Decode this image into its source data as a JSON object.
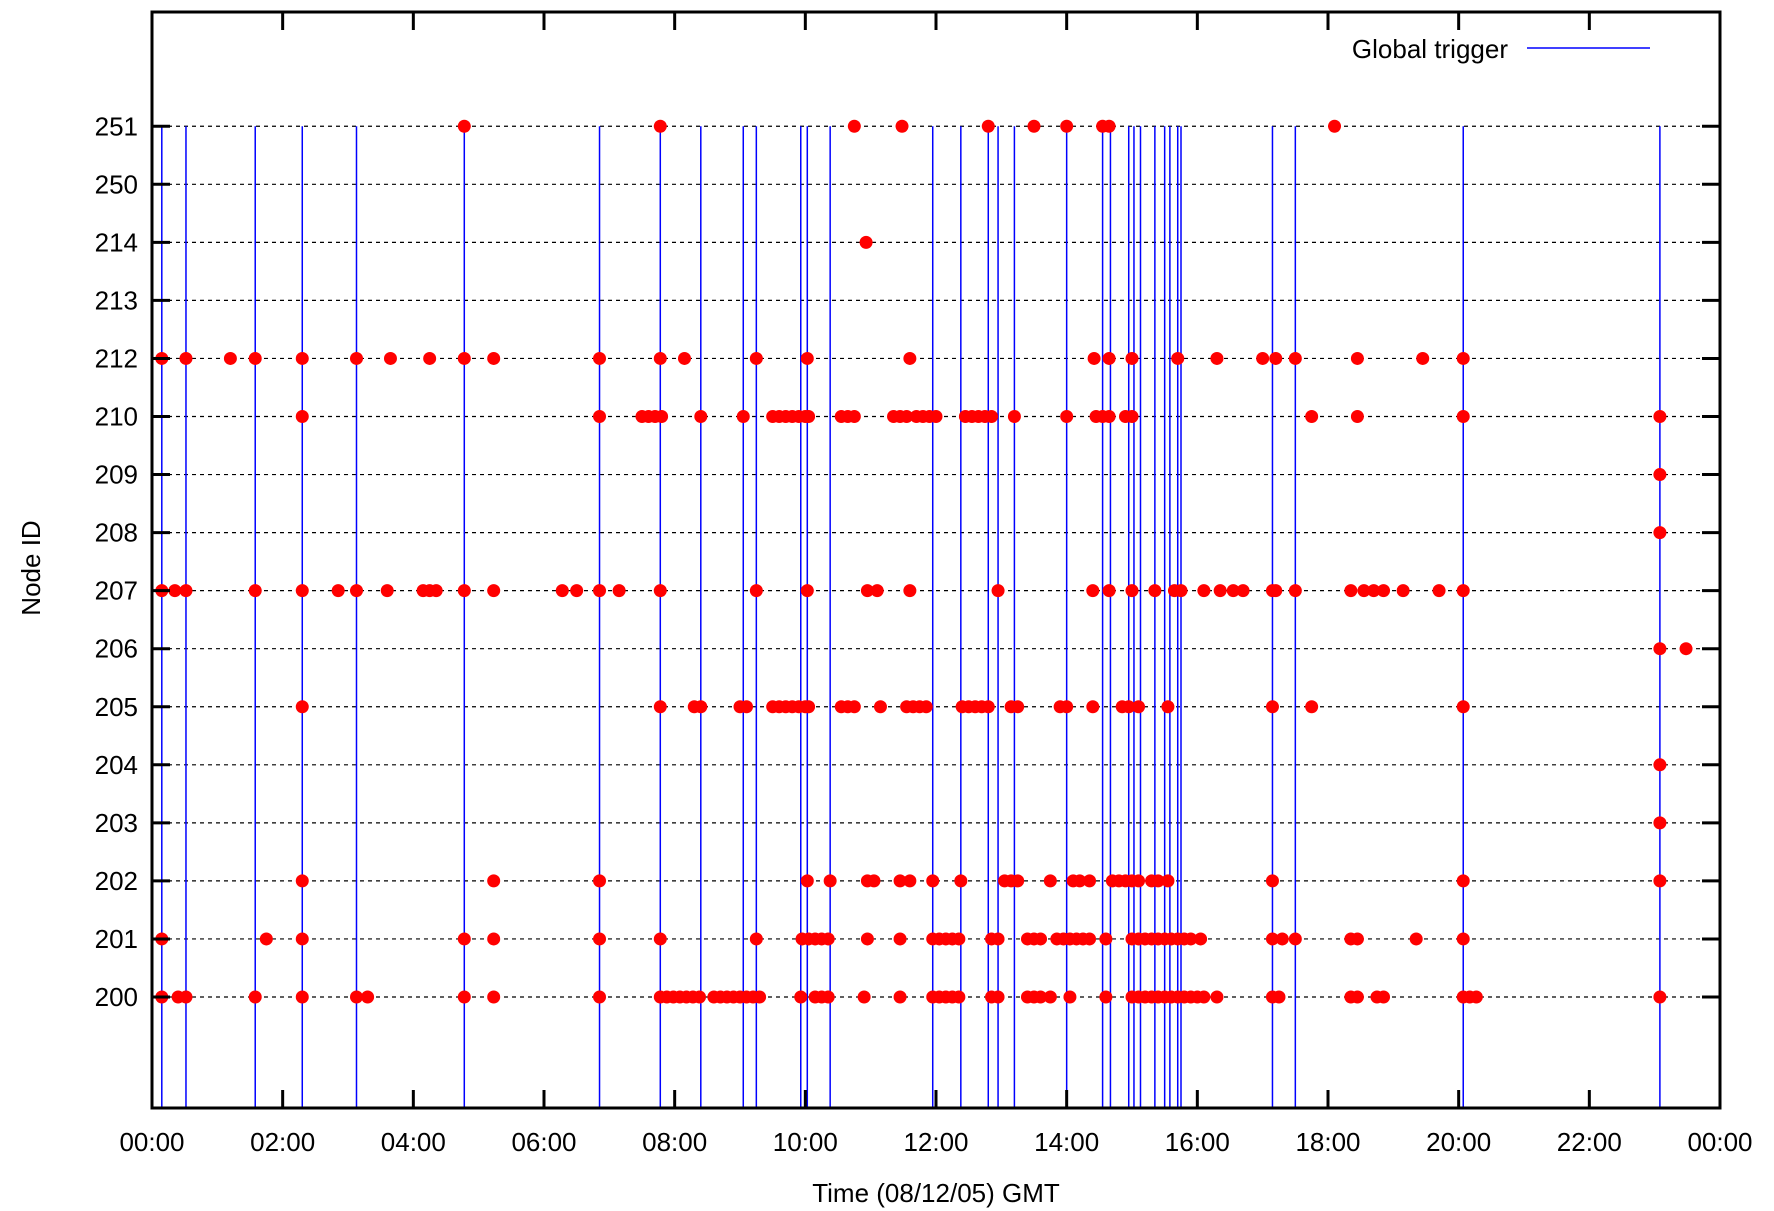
{
  "chart_data": {
    "type": "scatter",
    "title": "",
    "xlabel": "Time (08/12/05) GMT",
    "ylabel": "Node ID",
    "x_unit": "hours",
    "xlim": [
      0,
      24
    ],
    "x_ticks": [
      0,
      2,
      4,
      6,
      8,
      10,
      12,
      14,
      16,
      18,
      20,
      22,
      24
    ],
    "x_tick_labels": [
      "00:00",
      "02:00",
      "04:00",
      "06:00",
      "08:00",
      "10:00",
      "12:00",
      "14:00",
      "16:00",
      "18:00",
      "20:00",
      "22:00",
      "00:00"
    ],
    "y_categories": [
      "200",
      "201",
      "202",
      "203",
      "204",
      "205",
      "206",
      "207",
      "208",
      "209",
      "210",
      "212",
      "213",
      "214",
      "250",
      "251"
    ],
    "grid": "horizontal dashed",
    "legend": {
      "position": "top-right",
      "entries": [
        {
          "name": "Global trigger",
          "color": "#0000ff"
        }
      ]
    },
    "series": [
      {
        "name": "Global trigger",
        "kind": "vertical-lines",
        "color": "#0000ff",
        "x": [
          0.15,
          0.52,
          1.58,
          2.3,
          3.13,
          4.78,
          6.85,
          7.78,
          8.4,
          9.05,
          9.25,
          9.93,
          10.03,
          10.38,
          11.95,
          12.38,
          12.8,
          12.95,
          13.2,
          14.0,
          14.55,
          14.67,
          14.95,
          15.03,
          15.13,
          15.35,
          15.5,
          15.58,
          15.7,
          15.75,
          17.15,
          17.5,
          20.07,
          23.08
        ],
        "y_top": "251"
      },
      {
        "name": "",
        "kind": "points",
        "color": "#ff0000",
        "points": [
          {
            "node": "251",
            "x": [
              4.78,
              7.78,
              10.75,
              11.48,
              12.8,
              13.5,
              14.0,
              14.55,
              14.65,
              18.1
            ]
          },
          {
            "node": "214",
            "x": [
              10.93
            ]
          },
          {
            "node": "212",
            "x": [
              0.15,
              0.52,
              1.2,
              1.58,
              2.3,
              3.13,
              3.65,
              4.25,
              4.78,
              5.23,
              6.85,
              7.78,
              8.15,
              9.25,
              10.03,
              11.6,
              14.42,
              14.65,
              15.0,
              15.7,
              16.3,
              17.0,
              17.2,
              17.5,
              18.45,
              19.45,
              20.07
            ]
          },
          {
            "node": "210",
            "x": [
              2.3,
              6.85,
              7.5,
              7.6,
              7.7,
              7.8,
              8.4,
              9.05,
              9.5,
              9.6,
              9.7,
              9.8,
              9.9,
              10.0,
              10.05,
              10.55,
              10.65,
              10.75,
              11.35,
              11.45,
              11.55,
              11.7,
              11.8,
              11.9,
              12.0,
              12.45,
              12.55,
              12.65,
              12.75,
              12.85,
              13.2,
              14.0,
              14.45,
              14.55,
              14.65,
              14.9,
              15.0,
              17.75,
              18.45,
              20.07,
              23.08
            ]
          },
          {
            "node": "209",
            "x": [
              23.08
            ]
          },
          {
            "node": "208",
            "x": [
              23.08
            ]
          },
          {
            "node": "207",
            "x": [
              0.15,
              0.35,
              0.52,
              1.58,
              2.3,
              2.85,
              3.13,
              3.6,
              4.15,
              4.25,
              4.35,
              4.78,
              5.23,
              6.28,
              6.5,
              6.85,
              7.15,
              7.78,
              9.25,
              10.03,
              10.95,
              11.1,
              11.6,
              12.95,
              14.4,
              14.65,
              15.0,
              15.35,
              15.65,
              15.75,
              16.1,
              16.35,
              16.55,
              16.7,
              17.15,
              17.2,
              17.5,
              18.35,
              18.55,
              18.7,
              18.85,
              19.15,
              19.7,
              20.07
            ]
          },
          {
            "node": "206",
            "x": [
              23.08,
              23.48
            ]
          },
          {
            "node": "205",
            "x": [
              2.3,
              7.78,
              8.3,
              8.4,
              9.0,
              9.1,
              9.5,
              9.6,
              9.7,
              9.8,
              9.9,
              10.0,
              10.05,
              10.55,
              10.65,
              10.75,
              11.15,
              11.55,
              11.65,
              11.75,
              11.85,
              12.4,
              12.5,
              12.6,
              12.7,
              12.8,
              13.15,
              13.25,
              13.9,
              14.0,
              14.4,
              14.85,
              14.95,
              15.1,
              15.55,
              17.15,
              17.75,
              20.07
            ]
          },
          {
            "node": "204",
            "x": [
              23.08
            ]
          },
          {
            "node": "203",
            "x": [
              23.08
            ]
          },
          {
            "node": "202",
            "x": [
              2.3,
              5.23,
              6.85,
              10.03,
              10.38,
              10.95,
              11.05,
              11.45,
              11.6,
              11.95,
              12.38,
              13.05,
              13.15,
              13.25,
              13.75,
              14.1,
              14.2,
              14.35,
              14.7,
              14.8,
              14.9,
              15.0,
              15.1,
              15.3,
              15.4,
              15.55,
              17.15,
              20.07,
              23.08
            ]
          },
          {
            "node": "201",
            "x": [
              0.15,
              1.75,
              2.3,
              4.78,
              5.23,
              6.85,
              7.78,
              9.25,
              9.95,
              10.05,
              10.15,
              10.25,
              10.35,
              10.95,
              11.45,
              11.95,
              12.05,
              12.15,
              12.25,
              12.35,
              12.85,
              12.95,
              13.4,
              13.5,
              13.6,
              13.85,
              13.95,
              14.05,
              14.15,
              14.25,
              14.35,
              14.6,
              15.0,
              15.1,
              15.2,
              15.3,
              15.4,
              15.5,
              15.6,
              15.7,
              15.8,
              15.9,
              16.05,
              17.15,
              17.3,
              17.5,
              18.35,
              18.45,
              19.35,
              20.07
            ]
          },
          {
            "node": "200",
            "x": [
              0.15,
              0.4,
              0.52,
              1.58,
              2.3,
              3.13,
              3.3,
              4.78,
              5.23,
              6.85,
              7.78,
              7.88,
              7.98,
              8.08,
              8.18,
              8.28,
              8.38,
              8.6,
              8.7,
              8.8,
              8.9,
              9.0,
              9.1,
              9.2,
              9.3,
              9.93,
              10.15,
              10.25,
              10.35,
              10.9,
              11.45,
              11.95,
              12.05,
              12.15,
              12.25,
              12.35,
              12.85,
              12.95,
              13.4,
              13.5,
              13.6,
              13.75,
              14.05,
              14.6,
              15.0,
              15.1,
              15.2,
              15.3,
              15.4,
              15.5,
              15.6,
              15.7,
              15.8,
              15.9,
              16.0,
              16.1,
              16.3,
              17.15,
              17.25,
              18.35,
              18.45,
              18.75,
              18.85,
              20.07,
              20.17,
              20.27,
              23.08
            ]
          }
        ]
      }
    ]
  }
}
